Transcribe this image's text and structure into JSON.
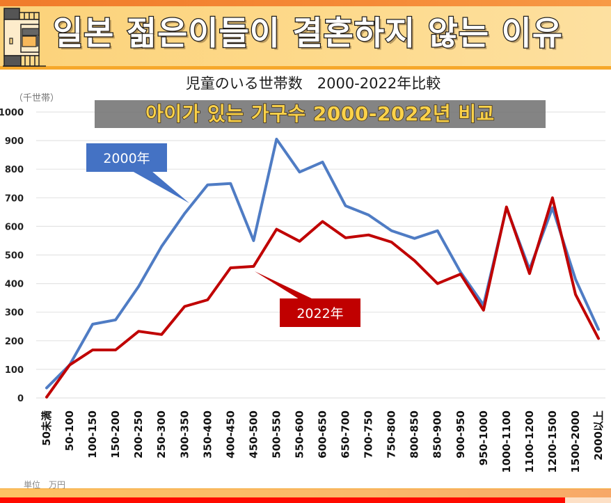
{
  "banner": {
    "title": "일본 젊은이들이 결혼하지 않는 이유",
    "icon": "building-icon"
  },
  "chart_header": {
    "title_jp": "児童のいる世帯数　2000-2022年比較",
    "subtitle_kr": "아이가 있는 가구수 2000-2022년 비교",
    "y_unit": "（千世帯）",
    "x_unit": "単位　万円"
  },
  "video_progress": 0.925,
  "colors": {
    "series_2000": "#4f7cc4",
    "series_2022": "#c00000",
    "callout_2000": "#4472c4",
    "callout_2022": "#c00000",
    "banner_bg": "#fdd98a",
    "subtitle_text": "#fbd24a"
  },
  "chart_data": {
    "type": "line",
    "title": "児童のいる世帯数　2000-2022年比較",
    "xlabel": "単位　万円",
    "ylabel": "（千世帯）",
    "ylim": [
      0,
      1000
    ],
    "yticks": [
      0,
      100,
      200,
      300,
      400,
      500,
      600,
      700,
      800,
      900,
      1000
    ],
    "grid": true,
    "legend": "callouts",
    "categories": [
      "50未満",
      "50-100",
      "100-150",
      "150-200",
      "200-250",
      "250-300",
      "300-350",
      "350-400",
      "400-450",
      "450-500",
      "500-550",
      "550-600",
      "600-650",
      "650-700",
      "700-750",
      "750-800",
      "800-850",
      "850-900",
      "900-950",
      "950-1000",
      "1000-1100",
      "1100-1200",
      "1200-1500",
      "1500-2000",
      "2000以上"
    ],
    "series": [
      {
        "name": "2000年",
        "values": [
          35,
          115,
          258,
          273,
          390,
          530,
          645,
          745,
          750,
          550,
          905,
          790,
          825,
          672,
          640,
          585,
          558,
          585,
          440,
          325,
          665,
          450,
          665,
          415,
          240
        ]
      },
      {
        "name": "2022年",
        "values": [
          3,
          115,
          168,
          168,
          233,
          222,
          320,
          343,
          455,
          460,
          590,
          548,
          617,
          560,
          570,
          545,
          480,
          400,
          433,
          307,
          668,
          435,
          700,
          362,
          208
        ]
      }
    ],
    "annotations": [
      {
        "text": "2000年",
        "series": "2000年",
        "points_to": "300-350"
      },
      {
        "text": "2022年",
        "series": "2022年",
        "points_to": "450-500"
      }
    ]
  }
}
